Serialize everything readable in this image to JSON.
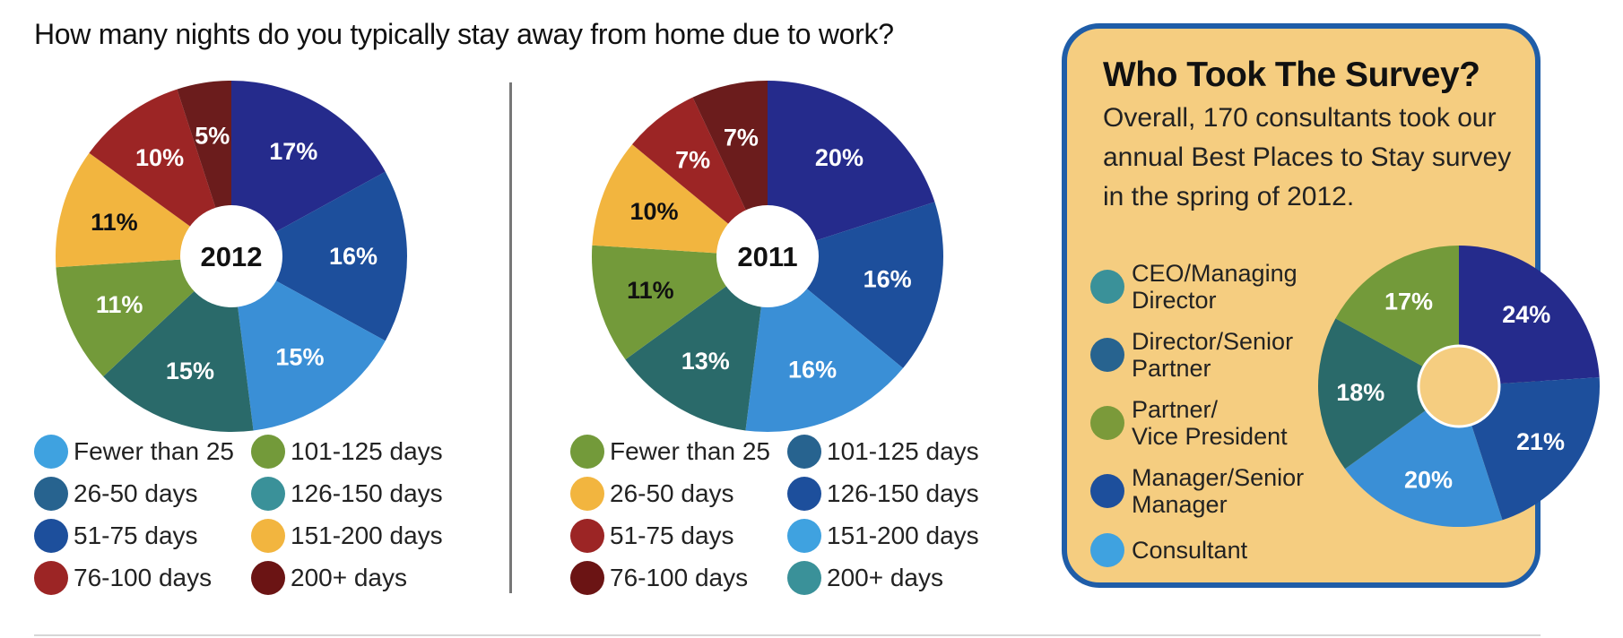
{
  "title": "How many nights do you typically stay away from home due to work?",
  "panel": {
    "title": "Who Took The Survey?",
    "description": "Overall, 170 consultants took our annual Best Places to Stay survey in the spring of 2012.",
    "legend": [
      {
        "lines": [
          "CEO/Managing",
          "Director"
        ],
        "color": "#3a9199"
      },
      {
        "lines": [
          "Director/Senior",
          "Partner"
        ],
        "color": "#27638f"
      },
      {
        "lines": [
          "Partner/",
          "Vice President"
        ],
        "color": "#7b9a3a"
      },
      {
        "lines": [
          "Manager/Senior",
          "Manager"
        ],
        "color": "#1d4f9c"
      },
      {
        "lines": [
          "Consultant"
        ],
        "color": "#3fa2e0"
      }
    ]
  },
  "legend_2012": [
    {
      "label": "Fewer than 25",
      "color": "#3fa2e0"
    },
    {
      "label": "101-125 days",
      "color": "#739a3a"
    },
    {
      "label": "26-50 days",
      "color": "#27638f"
    },
    {
      "label": "126-150 days",
      "color": "#3a9199"
    },
    {
      "label": "51-75 days",
      "color": "#1d4f9c"
    },
    {
      "label": "151-200 days",
      "color": "#f2b53f"
    },
    {
      "label": "76-100 days",
      "color": "#9c2525"
    },
    {
      "label": "200+ days",
      "color": "#6b1414"
    }
  ],
  "legend_2011": [
    {
      "label": "Fewer than 25",
      "color": "#739a3a"
    },
    {
      "label": "101-125 days",
      "color": "#27638f"
    },
    {
      "label": "26-50 days",
      "color": "#f2b53f"
    },
    {
      "label": "126-150 days",
      "color": "#1d4f9c"
    },
    {
      "label": "51-75 days",
      "color": "#9c2525"
    },
    {
      "label": "151-200 days",
      "color": "#3fa2e0"
    },
    {
      "label": "76-100 days",
      "color": "#6b1414"
    },
    {
      "label": "200+ days",
      "color": "#3a9199"
    }
  ],
  "chart_data": [
    {
      "type": "pie",
      "center_label": "2012",
      "slices": [
        {
          "label": "17%",
          "value": 17,
          "color": "#252b8c"
        },
        {
          "label": "16%",
          "value": 16,
          "color": "#1d4f9c"
        },
        {
          "label": "15%",
          "value": 15,
          "color": "#3a8fd6"
        },
        {
          "label": "15%",
          "value": 15,
          "color": "#2a6a6a"
        },
        {
          "label": "11%",
          "value": 11,
          "color": "#739a3a"
        },
        {
          "label": "11%",
          "value": 11,
          "color": "#f2b53f",
          "text_dark": true
        },
        {
          "label": "10%",
          "value": 10,
          "color": "#9c2525"
        },
        {
          "label": "5%",
          "value": 5,
          "color": "#6b1c1c"
        }
      ]
    },
    {
      "type": "pie",
      "center_label": "2011",
      "slices": [
        {
          "label": "20%",
          "value": 20,
          "color": "#252b8c"
        },
        {
          "label": "16%",
          "value": 16,
          "color": "#1d4f9c"
        },
        {
          "label": "16%",
          "value": 16,
          "color": "#3a8fd6"
        },
        {
          "label": "13%",
          "value": 13,
          "color": "#2a6a6a"
        },
        {
          "label": "11%",
          "value": 11,
          "color": "#739a3a",
          "text_dark": true
        },
        {
          "label": "10%",
          "value": 10,
          "color": "#f2b53f",
          "text_dark": true
        },
        {
          "label": "7%",
          "value": 7,
          "color": "#9c2525"
        },
        {
          "label": "7%",
          "value": 7,
          "color": "#6b1c1c"
        }
      ]
    },
    {
      "type": "pie",
      "center_label": "",
      "slices": [
        {
          "label": "24%",
          "value": 24,
          "color": "#252b8c"
        },
        {
          "label": "21%",
          "value": 21,
          "color": "#1d4f9c"
        },
        {
          "label": "20%",
          "value": 20,
          "color": "#3a8fd6"
        },
        {
          "label": "18%",
          "value": 18,
          "color": "#2a6a6a"
        },
        {
          "label": "17%",
          "value": 17,
          "color": "#739a3a"
        }
      ]
    }
  ]
}
